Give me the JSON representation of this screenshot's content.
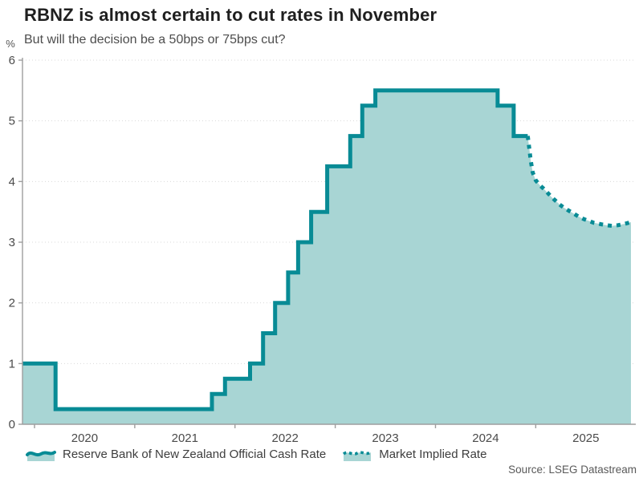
{
  "chart_data": {
    "type": "area",
    "title": "RBNZ is almost certain to cut rates in November",
    "subtitle": "But will the decision be a 50bps or 75bps cut?",
    "ylabel": "%",
    "xlabel": "",
    "x_domain": [
      2019.88,
      2025.95
    ],
    "ylim": [
      0,
      6
    ],
    "y_ticks": [
      0,
      1,
      2,
      3,
      4,
      5,
      6
    ],
    "x_ticks": [
      2020,
      2021,
      2022,
      2023,
      2024,
      2025
    ],
    "grid": "horizontal-dotted",
    "legend_position": "bottom",
    "colors": {
      "line": "#088b95",
      "fill": "#a8d5d4"
    },
    "series": [
      {
        "name": "Reserve Bank of New Zealand Official Cash Rate",
        "style": "solid-step",
        "points": [
          [
            2019.88,
            1.0
          ],
          [
            2020.21,
            0.25
          ],
          [
            2021.77,
            0.5
          ],
          [
            2021.9,
            0.75
          ],
          [
            2022.15,
            1.0
          ],
          [
            2022.28,
            1.5
          ],
          [
            2022.4,
            2.0
          ],
          [
            2022.53,
            2.5
          ],
          [
            2022.63,
            3.0
          ],
          [
            2022.76,
            3.5
          ],
          [
            2022.92,
            4.25
          ],
          [
            2023.15,
            4.75
          ],
          [
            2023.27,
            5.25
          ],
          [
            2023.4,
            5.5
          ],
          [
            2024.62,
            5.25
          ],
          [
            2024.78,
            4.75
          ],
          [
            2024.92,
            4.75
          ]
        ]
      },
      {
        "name": "Market Implied Rate",
        "style": "dashed-line",
        "points": [
          [
            2024.92,
            4.75
          ],
          [
            2024.935,
            4.55
          ],
          [
            2024.95,
            4.35
          ],
          [
            2024.97,
            4.15
          ],
          [
            2025.0,
            4.02
          ],
          [
            2025.04,
            3.94
          ],
          [
            2025.08,
            3.88
          ],
          [
            2025.12,
            3.81
          ],
          [
            2025.16,
            3.74
          ],
          [
            2025.2,
            3.68
          ],
          [
            2025.24,
            3.62
          ],
          [
            2025.28,
            3.57
          ],
          [
            2025.33,
            3.52
          ],
          [
            2025.38,
            3.47
          ],
          [
            2025.43,
            3.42
          ],
          [
            2025.48,
            3.38
          ],
          [
            2025.53,
            3.35
          ],
          [
            2025.58,
            3.32
          ],
          [
            2025.64,
            3.3
          ],
          [
            2025.7,
            3.28
          ],
          [
            2025.76,
            3.27
          ],
          [
            2025.82,
            3.28
          ],
          [
            2025.88,
            3.3
          ],
          [
            2025.95,
            3.33
          ]
        ]
      }
    ],
    "source": "Source: LSEG Datastream"
  }
}
